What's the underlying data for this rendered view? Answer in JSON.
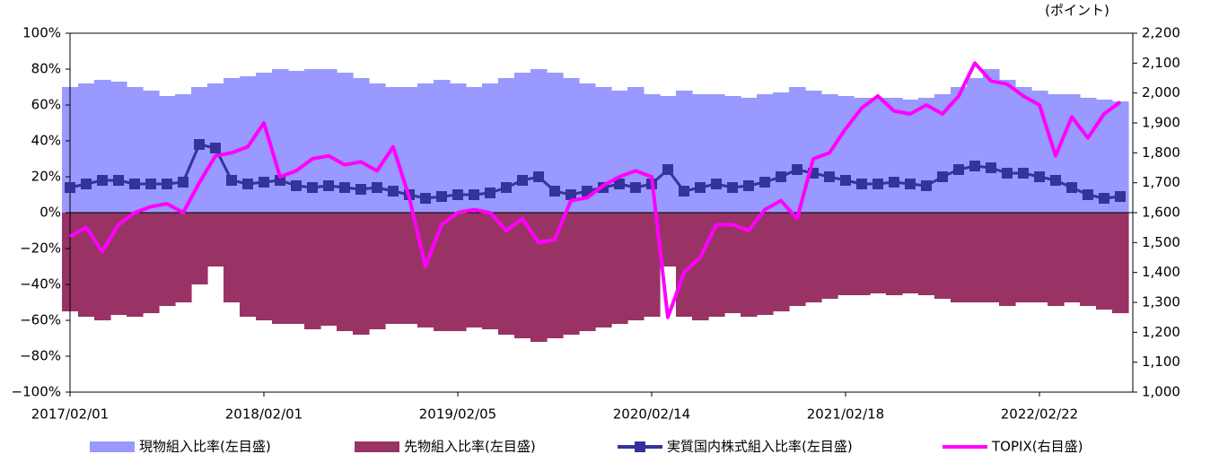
{
  "chart_data": {
    "type": "bar",
    "y2_unit_label": "(ポイント)",
    "categories": [
      "2017/02/01",
      null,
      null,
      null,
      null,
      null,
      null,
      null,
      null,
      null,
      null,
      null,
      "2018/02/01",
      null,
      null,
      null,
      null,
      null,
      null,
      null,
      null,
      null,
      null,
      null,
      "2019/02/05",
      null,
      null,
      null,
      null,
      null,
      null,
      null,
      null,
      null,
      null,
      null,
      "2020/02/14",
      null,
      null,
      null,
      null,
      null,
      null,
      null,
      null,
      null,
      null,
      null,
      "2021/02/18",
      null,
      null,
      null,
      null,
      null,
      null,
      null,
      null,
      null,
      null,
      null,
      "2022/02/22",
      null,
      null,
      null,
      null,
      null
    ],
    "ylim": [
      -100,
      100
    ],
    "yticks": [
      {
        "value": -100,
        "label": "−100%"
      },
      {
        "value": -80,
        "label": "−80%"
      },
      {
        "value": -60,
        "label": "−60%"
      },
      {
        "value": -40,
        "label": "−40%"
      },
      {
        "value": -20,
        "label": "−20%"
      },
      {
        "value": 0,
        "label": "0%"
      },
      {
        "value": 20,
        "label": "20%"
      },
      {
        "value": 40,
        "label": "40%"
      },
      {
        "value": 60,
        "label": "60%"
      },
      {
        "value": 80,
        "label": "80%"
      },
      {
        "value": 100,
        "label": "100%"
      }
    ],
    "y2lim": [
      1000,
      2200
    ],
    "y2ticks": [
      {
        "value": 1000,
        "label": "1,000"
      },
      {
        "value": 1100,
        "label": "1,100"
      },
      {
        "value": 1200,
        "label": "1,200"
      },
      {
        "value": 1300,
        "label": "1,300"
      },
      {
        "value": 1400,
        "label": "1,400"
      },
      {
        "value": 1500,
        "label": "1,500"
      },
      {
        "value": 1600,
        "label": "1,600"
      },
      {
        "value": 1700,
        "label": "1,700"
      },
      {
        "value": 1800,
        "label": "1,800"
      },
      {
        "value": 1900,
        "label": "1,900"
      },
      {
        "value": 2000,
        "label": "2,000"
      },
      {
        "value": 2100,
        "label": "2,100"
      },
      {
        "value": 2200,
        "label": "2,200"
      }
    ],
    "series": [
      {
        "name": "現物組入比率(左目盛)",
        "type": "bar",
        "color": "#9999ff",
        "values": [
          70,
          72,
          74,
          73,
          70,
          68,
          65,
          66,
          70,
          72,
          75,
          76,
          78,
          80,
          79,
          80,
          80,
          78,
          75,
          72,
          70,
          70,
          72,
          74,
          72,
          70,
          72,
          75,
          78,
          80,
          78,
          75,
          72,
          70,
          68,
          70,
          66,
          65,
          68,
          66,
          66,
          65,
          64,
          66,
          67,
          70,
          68,
          66,
          65,
          64,
          64,
          64,
          63,
          64,
          66,
          70,
          75,
          80,
          74,
          70,
          68,
          66,
          66,
          64,
          63,
          62
        ]
      },
      {
        "name": "先物組入比率(左目盛)",
        "type": "bar",
        "color": "#993366",
        "values": [
          -55,
          -58,
          -60,
          -57,
          -58,
          -56,
          -52,
          -50,
          -40,
          -30,
          -50,
          -58,
          -60,
          -62,
          -62,
          -65,
          -63,
          -66,
          -68,
          -65,
          -62,
          -62,
          -64,
          -66,
          -66,
          -64,
          -65,
          -68,
          -70,
          -72,
          -70,
          -68,
          -66,
          -64,
          -62,
          -60,
          -58,
          -30,
          -58,
          -60,
          -58,
          -56,
          -58,
          -57,
          -55,
          -52,
          -50,
          -48,
          -46,
          -46,
          -45,
          -46,
          -45,
          -46,
          -48,
          -50,
          -50,
          -50,
          -52,
          -50,
          -50,
          -52,
          -50,
          -52,
          -54,
          -56
        ]
      },
      {
        "name": "実質国内株式組入比率(左目盛)",
        "type": "line",
        "marker": "square",
        "color": "#333399",
        "values": [
          14,
          16,
          18,
          18,
          16,
          16,
          16,
          17,
          38,
          36,
          18,
          16,
          17,
          18,
          15,
          14,
          15,
          14,
          13,
          14,
          12,
          10,
          8,
          9,
          10,
          10,
          11,
          14,
          18,
          20,
          12,
          10,
          12,
          14,
          16,
          14,
          16,
          24,
          12,
          14,
          16,
          14,
          15,
          17,
          20,
          24,
          22,
          20,
          18,
          16,
          16,
          17,
          16,
          15,
          20,
          24,
          26,
          25,
          22,
          22,
          20,
          18,
          14,
          10,
          8,
          9
        ]
      },
      {
        "name": "TOPIX(右目盛)",
        "type": "line",
        "axis": "y2",
        "color": "#ff00ff",
        "values": [
          1520,
          1550,
          1470,
          1560,
          1600,
          1620,
          1630,
          1600,
          1700,
          1790,
          1800,
          1820,
          1900,
          1720,
          1740,
          1780,
          1790,
          1760,
          1770,
          1740,
          1820,
          1650,
          1420,
          1560,
          1600,
          1610,
          1600,
          1540,
          1580,
          1500,
          1510,
          1640,
          1650,
          1690,
          1720,
          1740,
          1720,
          1250,
          1400,
          1450,
          1560,
          1560,
          1540,
          1610,
          1640,
          1580,
          1780,
          1800,
          1880,
          1950,
          1990,
          1940,
          1930,
          1960,
          1930,
          1990,
          2100,
          2040,
          2030,
          1990,
          1960,
          1790,
          1920,
          1850,
          1930,
          1970
        ]
      }
    ]
  }
}
